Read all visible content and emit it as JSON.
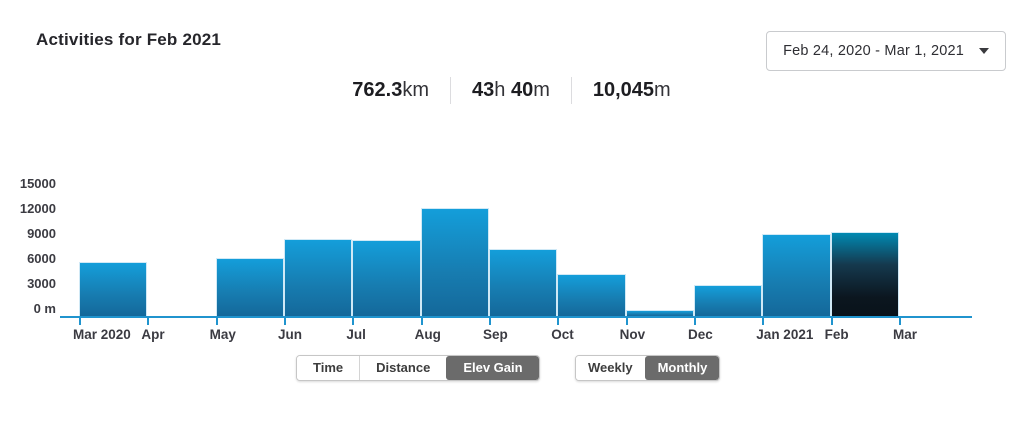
{
  "header": {
    "title": "Activities for Feb 2021",
    "date_range_label": "Feb 24, 2020 - Mar 1, 2021"
  },
  "icons": {
    "date_caret": "caret-down-triangle"
  },
  "stats": [
    {
      "name": "distance",
      "parts": [
        {
          "text": "762.3",
          "bold": true
        },
        {
          "text": "km",
          "bold": false
        }
      ]
    },
    {
      "name": "time",
      "parts": [
        {
          "text": "43",
          "bold": true
        },
        {
          "text": "h ",
          "bold": false
        },
        {
          "text": "40",
          "bold": true
        },
        {
          "text": "m",
          "bold": false
        }
      ]
    },
    {
      "name": "elevation",
      "parts": [
        {
          "text": "10,045",
          "bold": true
        },
        {
          "text": "m",
          "bold": false
        }
      ]
    }
  ],
  "chart_data": {
    "type": "bar",
    "categories": [
      "Mar 2020",
      "Apr",
      "May",
      "Jun",
      "Jul",
      "Aug",
      "Sep",
      "Oct",
      "Nov",
      "Dec",
      "Jan 2021",
      "Feb",
      "Mar"
    ],
    "values": [
      6500,
      0,
      7000,
      9200,
      9100,
      13000,
      8100,
      5000,
      700,
      3700,
      9800,
      10045,
      0
    ],
    "highlighted_index": 11,
    "highlighted_category": "Feb",
    "ylabel": "m",
    "yticks": [
      0,
      3000,
      6000,
      9000,
      12000,
      15000
    ],
    "ytick_labels": [
      "0 m",
      "3000",
      "6000",
      "9000",
      "12000",
      "15000"
    ],
    "ylim": [
      0,
      15000
    ],
    "grid": false,
    "legend": null,
    "colors": {
      "bar_top": "#149eda",
      "bar_bottom": "#14689a",
      "highlight_top": "#0089b2",
      "highlight_bottom": "#0a121a",
      "axis": "#2094ce",
      "selected_button_bg": "#6b6b6b"
    }
  },
  "controls": {
    "metric_toggle": [
      {
        "label": "Time",
        "selected": false
      },
      {
        "label": "Distance",
        "selected": false
      },
      {
        "label": "Elev Gain",
        "selected": true
      }
    ],
    "period_toggle": [
      {
        "label": "Weekly",
        "selected": false
      },
      {
        "label": "Monthly",
        "selected": true
      }
    ]
  }
}
